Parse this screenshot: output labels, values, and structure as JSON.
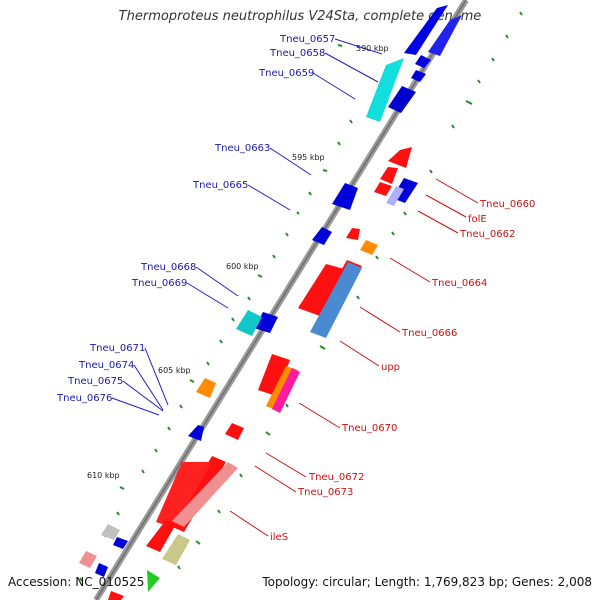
{
  "title": "Thermoproteus neutrophilus V24Sta, complete genome",
  "footer": {
    "accession": "Accession: NC_010525",
    "summary": "Topology: circular; Length: 1,769,823 bp; Genes: 2,008"
  },
  "colors": {
    "backbone": "#8c8c8c",
    "forward_gene": "#0000e6",
    "reverse_gene": "#ff1010",
    "blue_label": "#1a1aa6",
    "red_label": "#cc1010",
    "tick": "#2a8a2a"
  },
  "kbp_marks": [
    "590 kbp",
    "595 kbp",
    "600 kbp",
    "605 kbp",
    "610 kbp"
  ],
  "blue_labels": [
    "Tneu_0657",
    "Tneu_0658",
    "Tneu_0659",
    "Tneu_0663",
    "Tneu_0665",
    "Tneu_0668",
    "Tneu_0669",
    "Tneu_0671",
    "Tneu_0674",
    "Tneu_0675",
    "Tneu_0676"
  ],
  "red_labels": [
    "Tneu_0660",
    "folE",
    "Tneu_0662",
    "Tneu_0664",
    "Tneu_0666",
    "upp",
    "Tneu_0670",
    "Tneu_0672",
    "Tneu_0673",
    "ileS"
  ]
}
